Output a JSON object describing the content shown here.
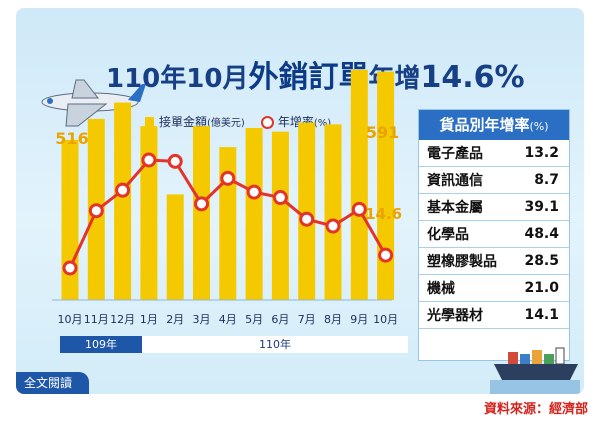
{
  "title": {
    "part1": "110年10月",
    "part2": "外銷訂單",
    "part3": "年增",
    "part4": "14.6%"
  },
  "legend": {
    "bar_label": "接單金額",
    "bar_unit": "(億美元)",
    "line_label": "年增率",
    "line_unit": "(%)"
  },
  "chart_data": {
    "type": "bar+line",
    "categories": [
      "10月",
      "11月",
      "12月",
      "1月",
      "2月",
      "3月",
      "4月",
      "5月",
      "6月",
      "7月",
      "8月",
      "9月",
      "10月"
    ],
    "series": [
      {
        "name": "接單金額",
        "unit": "億美元",
        "type": "bar",
        "color": "#f5c900",
        "values": [
          516,
          539,
          557,
          531,
          456,
          531,
          508,
          529,
          525,
          535,
          533,
          593,
          591
        ]
      },
      {
        "name": "年增率",
        "unit": "%",
        "type": "line",
        "color": "#e2342a",
        "values": [
          9.9,
          30.8,
          38.3,
          49.3,
          48.8,
          33.3,
          42.6,
          37.6,
          35.6,
          27.7,
          25.2,
          31.3,
          14.6
        ]
      }
    ],
    "data_labels": {
      "first_bar": "516",
      "last_bar": "591",
      "last_line": "14.6"
    },
    "year_groups": [
      {
        "label": "109年"
      },
      {
        "label": "110年"
      }
    ]
  },
  "table": {
    "title": "貨品別年增率",
    "unit": "(%)",
    "rows": [
      {
        "name": "電子產品",
        "value": "13.2"
      },
      {
        "name": "資訊通信",
        "value": "8.7"
      },
      {
        "name": "基本金屬",
        "value": "39.1"
      },
      {
        "name": "化學品",
        "value": "48.4"
      },
      {
        "name": "塑橡膠製品",
        "value": "28.5"
      },
      {
        "name": "機械",
        "value": "21.0"
      },
      {
        "name": "光學器材",
        "value": "14.1"
      }
    ]
  },
  "read_all": "全文閱讀",
  "source": "資料來源：經濟部",
  "colors": {
    "accent": "#1f57a8",
    "bar": "#f5c900",
    "line": "#e2342a",
    "source": "#d6221b"
  },
  "icons": [
    "airplane-icon",
    "cargo-ship-icon"
  ]
}
